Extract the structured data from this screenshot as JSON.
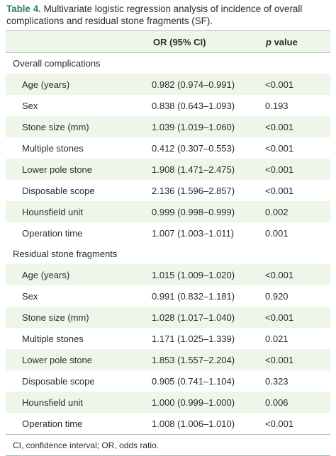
{
  "caption": {
    "label": "Table 4.",
    "text": "Multivariate logistic regression analysis of incidence of overall complications and residual stone fragments (SF)."
  },
  "headers": {
    "variable": "",
    "or": "OR (95% CI)",
    "p_italic": "p",
    "p_rest": " value"
  },
  "sections": [
    {
      "title": "Overall complications",
      "rows": [
        {
          "variable": "Age (years)",
          "or": "0.982 (0.974–0.991)",
          "p": "<0.001"
        },
        {
          "variable": "Sex",
          "or": "0.838 (0.643–1.093)",
          "p": "0.193"
        },
        {
          "variable": "Stone size (mm)",
          "or": "1.039 (1.019–1.060)",
          "p": "<0.001"
        },
        {
          "variable": "Multiple stones",
          "or": "0.412 (0.307–0.553)",
          "p": "<0.001"
        },
        {
          "variable": "Lower pole stone",
          "or": "1.908 (1.471–2.475)",
          "p": "<0.001"
        },
        {
          "variable": "Disposable scope",
          "or": "2.136 (1.596–2.857)",
          "p": "<0.001"
        },
        {
          "variable": "Hounsfield unit",
          "or": "0.999 (0.998–0.999)",
          "p": "0.002"
        },
        {
          "variable": "Operation time",
          "or": "1.007 (1.003–1.011)",
          "p": "0.001"
        }
      ]
    },
    {
      "title": "Residual stone fragments",
      "rows": [
        {
          "variable": "Age (years)",
          "or": "1.015 (1.009–1.020)",
          "p": "<0.001"
        },
        {
          "variable": "Sex",
          "or": "0.991 (0.832–1.181)",
          "p": "0.920"
        },
        {
          "variable": "Stone size (mm)",
          "or": "1.028 (1.017–1.040)",
          "p": "<0.001"
        },
        {
          "variable": "Multiple stones",
          "or": "1.171 (1.025–1.339)",
          "p": "0.021"
        },
        {
          "variable": "Lower pole stone",
          "or": "1.853 (1.557–2.204)",
          "p": "<0.001"
        },
        {
          "variable": "Disposable scope",
          "or": "0.905 (0.741–1.104)",
          "p": "0.323"
        },
        {
          "variable": "Hounsfield unit",
          "or": "1.000 (0.999–1.000)",
          "p": "0.006"
        },
        {
          "variable": "Operation time",
          "or": "1.008 (1.006–1.010)",
          "p": "<0.001"
        }
      ]
    }
  ],
  "footnote": "CI, confidence interval; OR, odds ratio.",
  "colors": {
    "label": "#2f7d5b",
    "shade": "#eef6ea",
    "rule": "#9fbfae"
  }
}
